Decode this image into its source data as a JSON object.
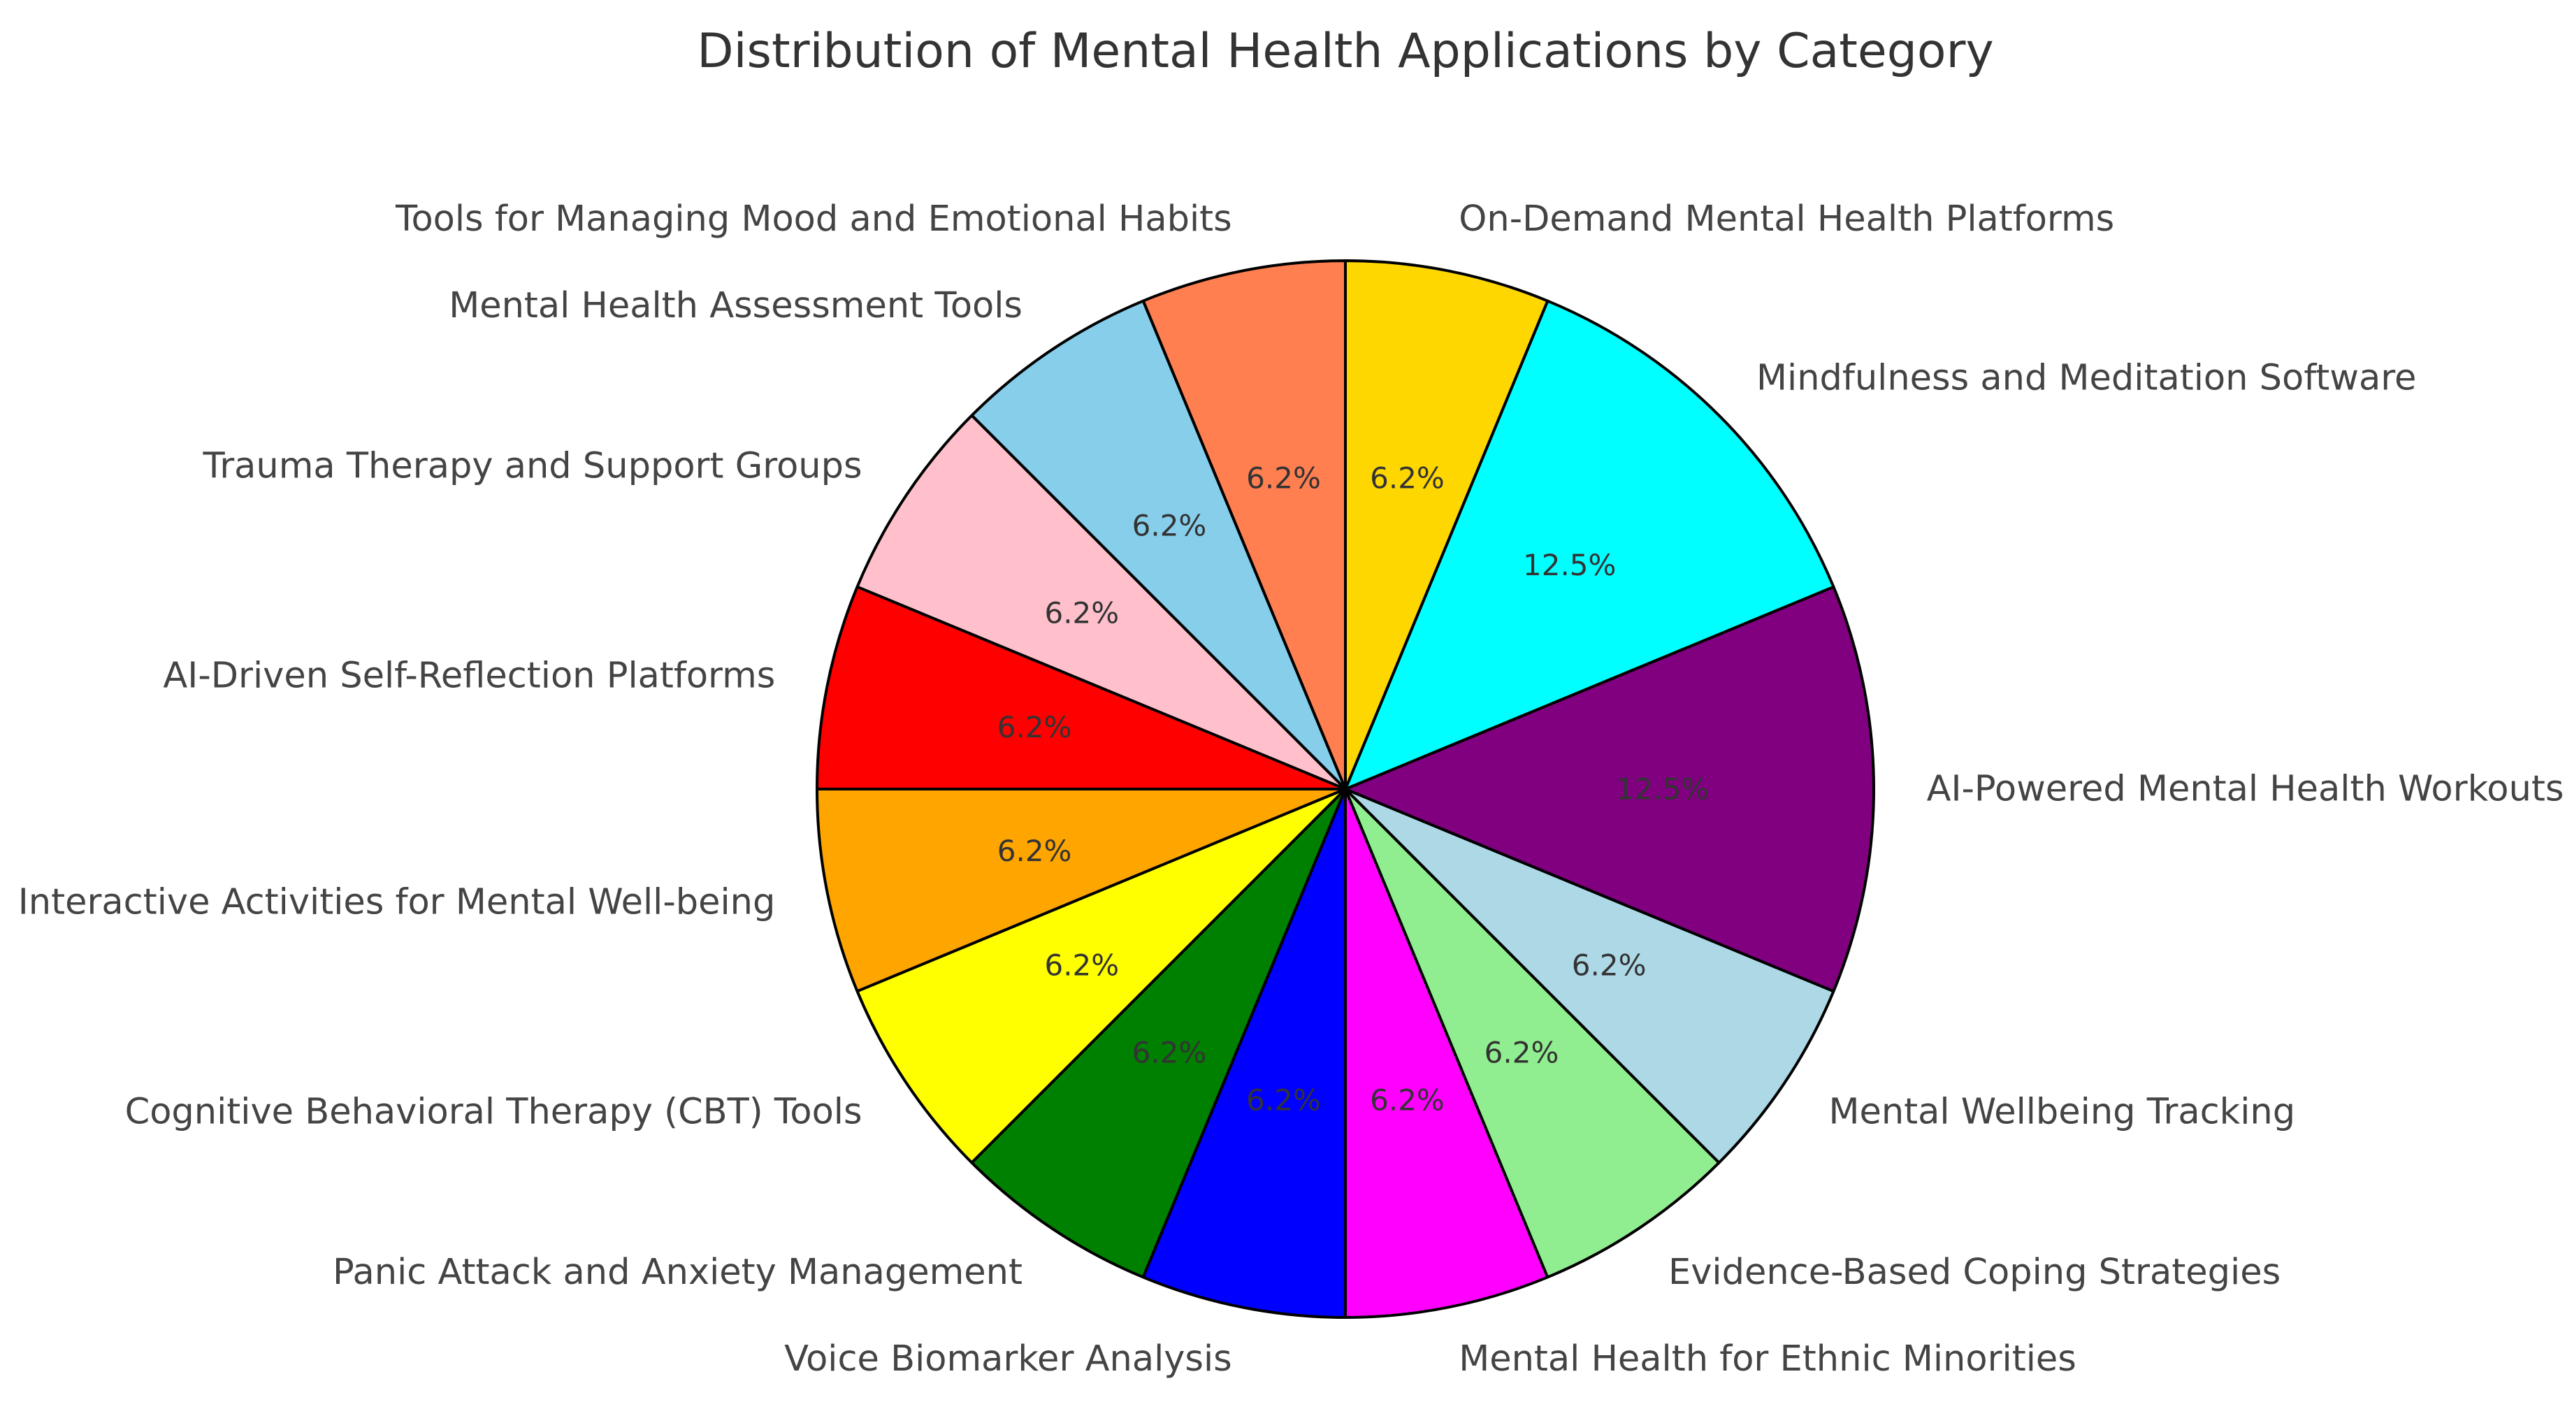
{
  "chart_data": {
    "type": "pie",
    "title": "Distribution of Mental Health Applications by Category",
    "start_angle_deg": 90,
    "direction": "counterclockwise",
    "slices": [
      {
        "label": "Tools for Managing Mood and Emotional Habits",
        "value": 1,
        "pct_label": "6.2%",
        "color": "#FF7F50"
      },
      {
        "label": "Mental Health Assessment Tools",
        "value": 1,
        "pct_label": "6.2%",
        "color": "#87CEEB"
      },
      {
        "label": "Trauma Therapy and Support Groups",
        "value": 1,
        "pct_label": "6.2%",
        "color": "#FFC0CB"
      },
      {
        "label": "AI-Driven Self-Reflection Platforms",
        "value": 1,
        "pct_label": "6.2%",
        "color": "#FF0000"
      },
      {
        "label": "Interactive Activities for Mental Well-being",
        "value": 1,
        "pct_label": "6.2%",
        "color": "#FFA500"
      },
      {
        "label": "Cognitive Behavioral Therapy (CBT) Tools",
        "value": 1,
        "pct_label": "6.2%",
        "color": "#FFFF00"
      },
      {
        "label": "Panic Attack and Anxiety Management",
        "value": 1,
        "pct_label": "6.2%",
        "color": "#008000"
      },
      {
        "label": "Voice Biomarker Analysis",
        "value": 1,
        "pct_label": "6.2%",
        "color": "#0000FF"
      },
      {
        "label": "Mental Health for Ethnic Minorities",
        "value": 1,
        "pct_label": "6.2%",
        "color": "#FF00FF"
      },
      {
        "label": "Evidence-Based Coping Strategies",
        "value": 1,
        "pct_label": "6.2%",
        "color": "#90EE90"
      },
      {
        "label": "Mental Wellbeing Tracking",
        "value": 1,
        "pct_label": "6.2%",
        "color": "#ADD8E6"
      },
      {
        "label": "AI-Powered Mental Health Workouts",
        "value": 2,
        "pct_label": "12.5%",
        "color": "#800080"
      },
      {
        "label": "Mindfulness and Meditation Software",
        "value": 2,
        "pct_label": "12.5%",
        "color": "#00FFFF"
      },
      {
        "label": "On-Demand Mental Health Platforms",
        "value": 1,
        "pct_label": "6.2%",
        "color": "#FFD700"
      }
    ]
  }
}
